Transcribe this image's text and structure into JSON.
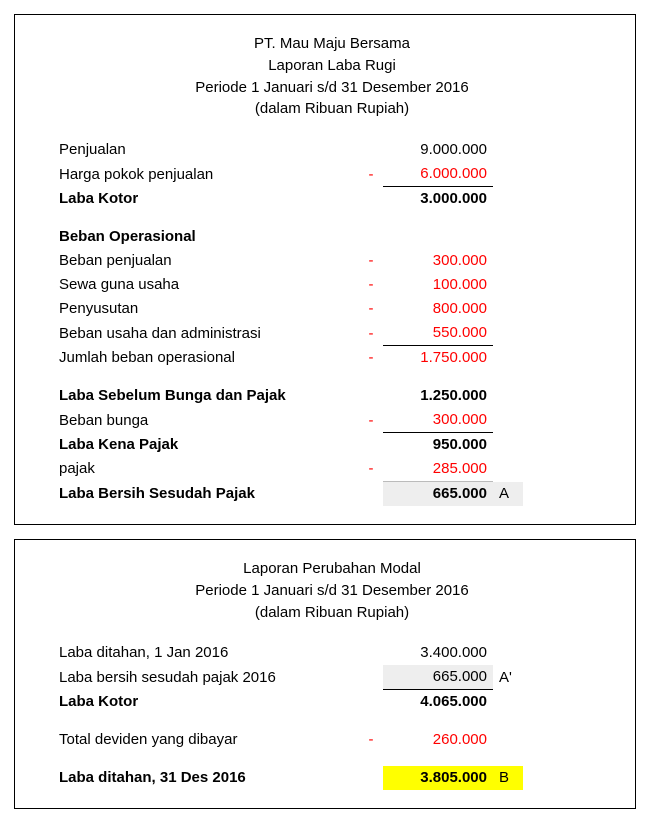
{
  "income": {
    "title1": "PT. Mau Maju Bersama",
    "title2": "Laporan Laba Rugi",
    "title3": "Periode 1 Januari s/d 31 Desember 2016",
    "title4": "(dalam Ribuan Rupiah)",
    "rows": {
      "penjualan": {
        "label": "Penjualan",
        "sign": "",
        "value": "9.000.000",
        "red": false
      },
      "hpp": {
        "label": "Harga pokok penjualan",
        "sign": "-",
        "value": "6.000.000",
        "red": true
      },
      "laba_kotor": {
        "label": "Laba Kotor",
        "sign": "",
        "value": "3.000.000",
        "red": false
      },
      "sec_opex": {
        "label": "Beban Operasional"
      },
      "beban_penjualan": {
        "label": "Beban penjualan",
        "sign": "-",
        "value": "300.000",
        "red": true
      },
      "sewa": {
        "label": "Sewa guna usaha",
        "sign": "-",
        "value": "100.000",
        "red": true
      },
      "penyusutan": {
        "label": "Penyusutan",
        "sign": "-",
        "value": "800.000",
        "red": true
      },
      "beban_admin": {
        "label": "Beban usaha dan administrasi",
        "sign": "-",
        "value": "550.000",
        "red": true
      },
      "jml_opex": {
        "label": "Jumlah beban operasional",
        "sign": "-",
        "value": "1.750.000",
        "red": true
      },
      "ebit": {
        "label": "Laba Sebelum Bunga dan Pajak",
        "sign": "",
        "value": "1.250.000",
        "red": false
      },
      "bunga": {
        "label": "Beban bunga",
        "sign": "-",
        "value": "300.000",
        "red": true
      },
      "lkp": {
        "label": "Laba Kena Pajak",
        "sign": "",
        "value": "950.000",
        "red": false
      },
      "pajak": {
        "label": "pajak",
        "sign": "-",
        "value": "285.000",
        "red": true
      },
      "lbsp": {
        "label": "Laba Bersih Sesudah Pajak",
        "sign": "",
        "value": "665.000",
        "red": false,
        "note": "A"
      }
    }
  },
  "equity": {
    "title1": "Laporan Perubahan Modal",
    "title2": "Periode 1 Januari s/d 31 Desember 2016",
    "title3": "(dalam Ribuan Rupiah)",
    "rows": {
      "re_open": {
        "label": "Laba ditahan, 1 Jan 2016",
        "sign": "",
        "value": "3.400.000",
        "red": false
      },
      "ni": {
        "label": "Laba bersih sesudah pajak 2016",
        "sign": "",
        "value": "665.000",
        "red": false,
        "note": "A'"
      },
      "subtotal": {
        "label": "Laba Kotor",
        "sign": "",
        "value": "4.065.000",
        "red": false
      },
      "dividen": {
        "label": "Total deviden yang dibayar",
        "sign": "-",
        "value": "260.000",
        "red": true
      },
      "re_close": {
        "label": "Laba ditahan, 31 Des 2016",
        "sign": "",
        "value": "3.805.000",
        "red": false,
        "note": "B"
      }
    }
  }
}
